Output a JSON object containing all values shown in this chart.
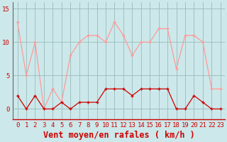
{
  "hours": [
    0,
    1,
    2,
    3,
    4,
    5,
    6,
    7,
    8,
    9,
    10,
    11,
    12,
    13,
    14,
    15,
    16,
    17,
    18,
    19,
    20,
    21,
    22,
    23
  ],
  "wind_avg": [
    2,
    0,
    2,
    0,
    0,
    1,
    0,
    1,
    1,
    1,
    3,
    3,
    3,
    2,
    3,
    3,
    3,
    3,
    0,
    0,
    2,
    1,
    0,
    0
  ],
  "wind_gust": [
    13,
    5,
    10,
    0,
    3,
    1,
    8,
    10,
    11,
    11,
    10,
    13,
    11,
    8,
    10,
    10,
    12,
    12,
    6,
    11,
    11,
    10,
    3,
    3
  ],
  "bg_color": "#cce8ea",
  "grid_color": "#99bbbb",
  "line_avg_color": "#cc0000",
  "line_gust_color": "#ff9999",
  "xlabel": "Vent moyen/en rafales ( km/h )",
  "yticks": [
    0,
    5,
    10,
    15
  ],
  "ylim": [
    -1.5,
    16
  ],
  "xlim": [
    -0.5,
    23.5
  ],
  "tick_fontsize": 6.5,
  "xlabel_fontsize": 8.5
}
